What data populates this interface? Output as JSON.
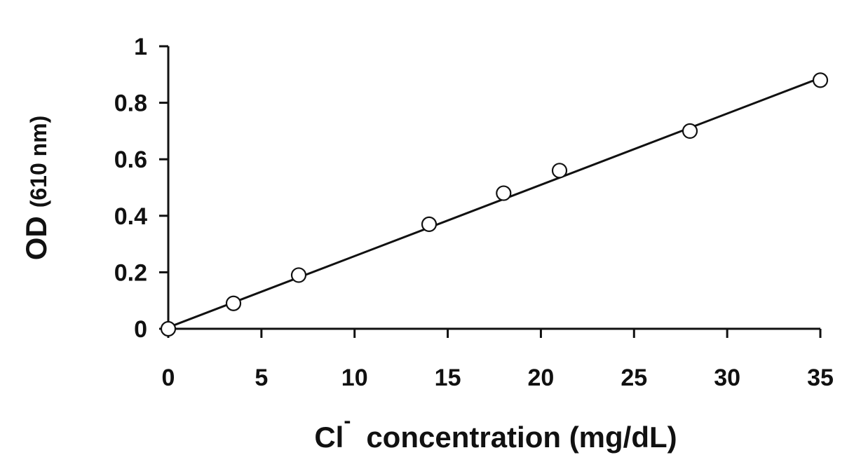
{
  "chart_data": {
    "type": "scatter",
    "xlabel": {
      "main": "Cl",
      "superscript": "-",
      "rest": "concentration (mg/dL)"
    },
    "ylabel": {
      "main": "OD",
      "rest": "(610 nm)"
    },
    "xlim": [
      0,
      35
    ],
    "ylim": [
      0,
      1
    ],
    "xticks": [
      0,
      5,
      10,
      15,
      20,
      25,
      30,
      35
    ],
    "yticks": [
      0,
      0.2,
      0.4,
      0.6,
      0.8,
      1
    ],
    "grid": false,
    "legend": "none",
    "series": [
      {
        "x": [
          0,
          3.5,
          7,
          14,
          18,
          21,
          28,
          35
        ],
        "y": [
          0,
          0.09,
          0.19,
          0.37,
          0.48,
          0.56,
          0.7,
          0.88
        ],
        "marker": "open-circle"
      }
    ],
    "trendline": {
      "type": "linear",
      "x": [
        0,
        35
      ],
      "y": [
        0.005,
        0.888
      ]
    },
    "colors": {
      "axis": "#111111",
      "marker": "#111111",
      "line": "#111111"
    }
  }
}
